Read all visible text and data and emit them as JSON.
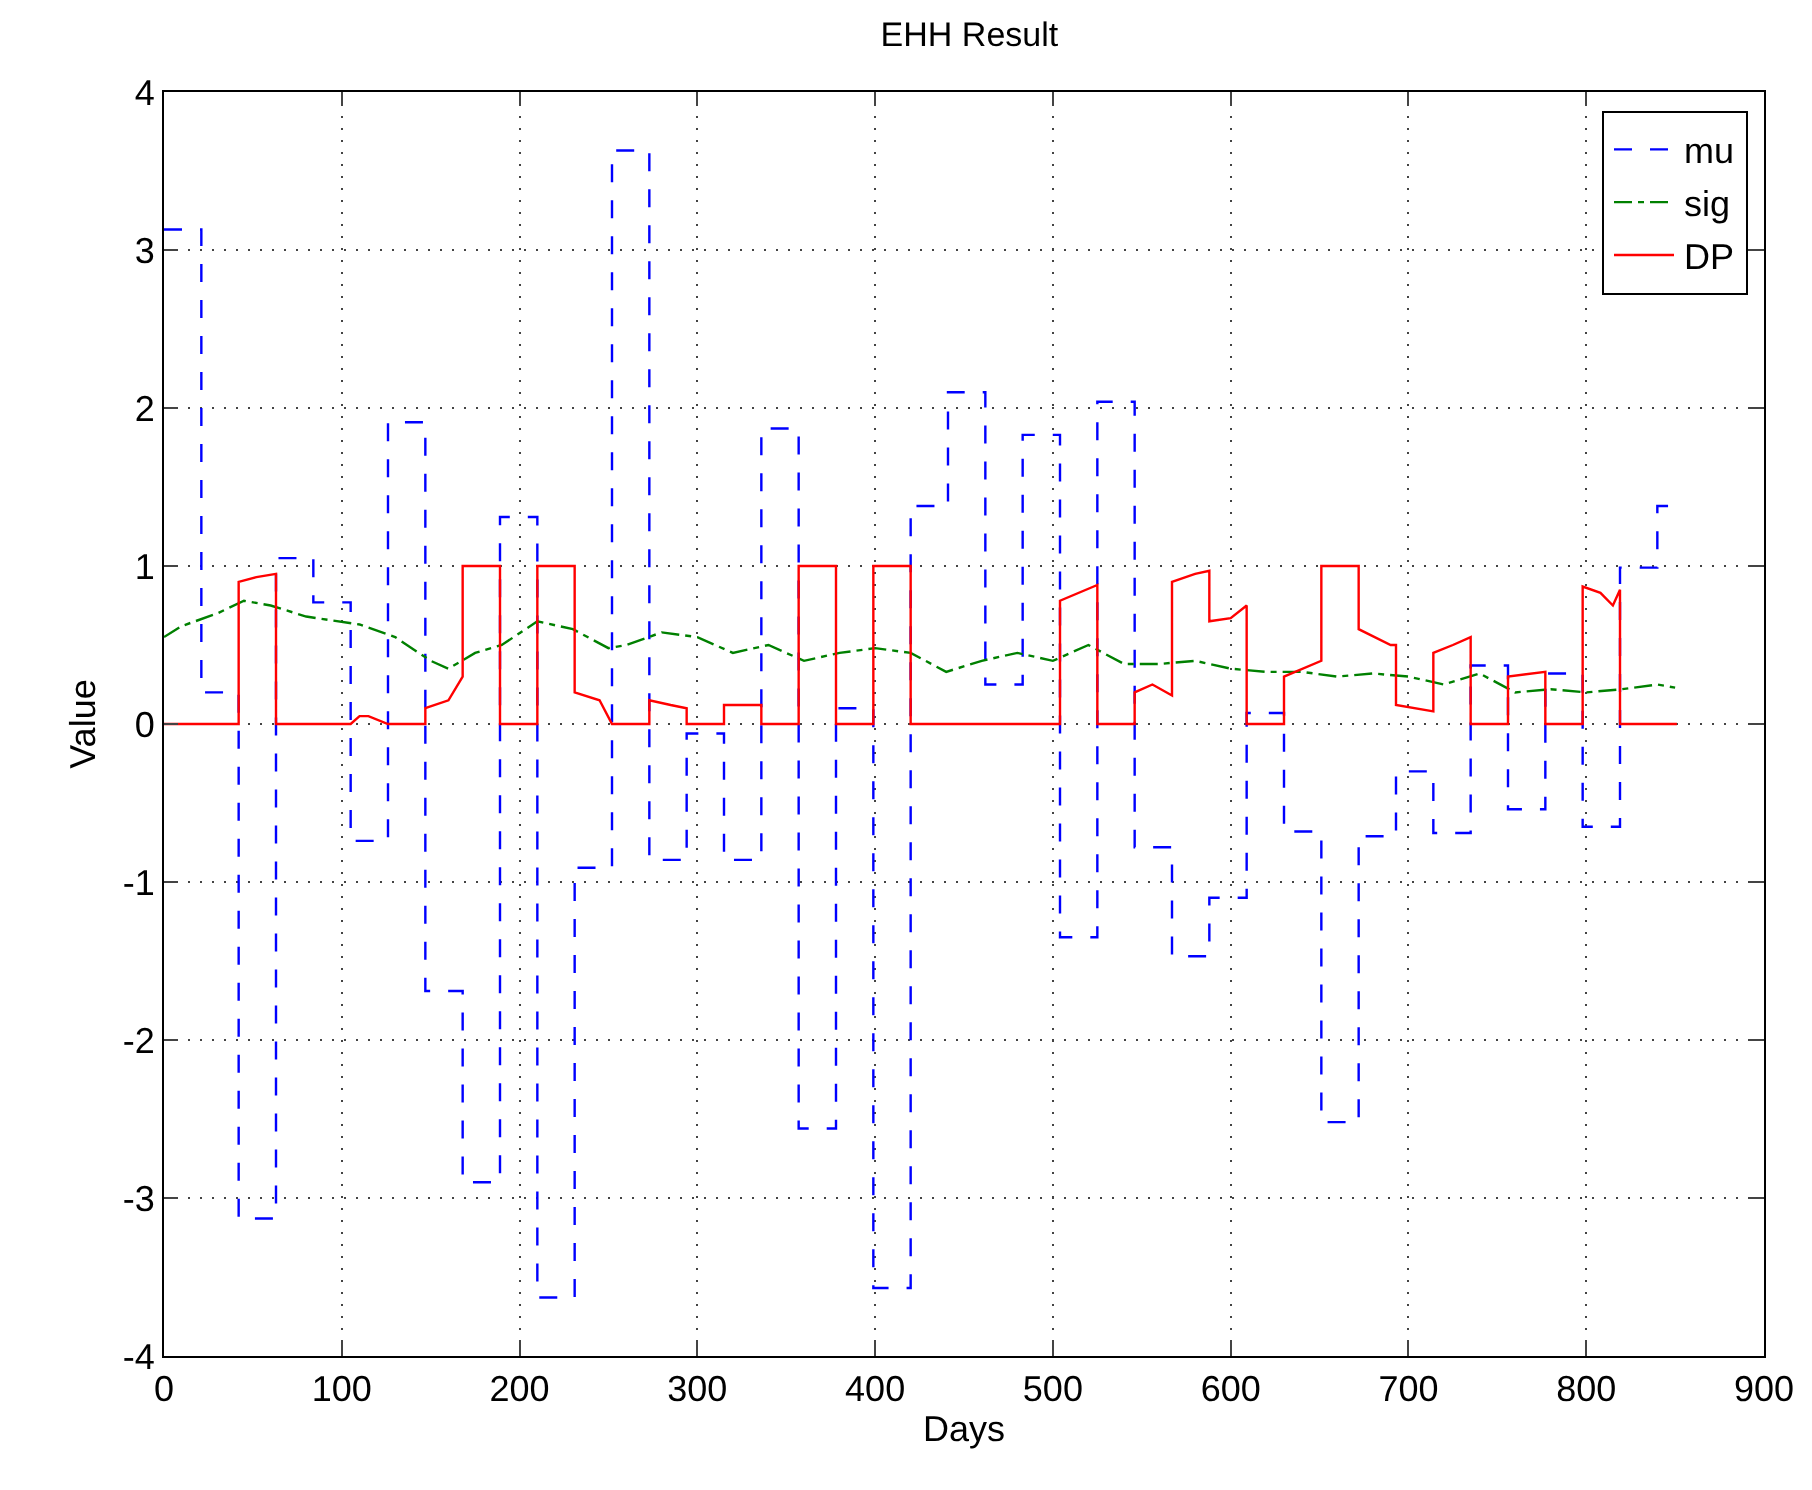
{
  "chart_data": {
    "type": "line",
    "title": "EHH Result",
    "xlabel": "Days",
    "ylabel": "Value",
    "xlim": [
      0,
      900
    ],
    "xticks": [
      0,
      100,
      200,
      300,
      400,
      500,
      600,
      700,
      800,
      900
    ],
    "ylim": [
      -4,
      4
    ],
    "yticks": [
      -4,
      -3,
      -2,
      -1,
      0,
      1,
      2,
      3,
      4
    ],
    "grid": true,
    "legend": "top right",
    "series": [
      {
        "name": "mu",
        "type": "step",
        "color": "#0000ff",
        "line_style": "dashed",
        "x": [
          0,
          21,
          42,
          63,
          84,
          105,
          126,
          147,
          168,
          189,
          210,
          231,
          252,
          273,
          294,
          315,
          336,
          357,
          378,
          399,
          420,
          441,
          462,
          483,
          504,
          525,
          546,
          567,
          588,
          609,
          630,
          651,
          672,
          693,
          714,
          735,
          756,
          777,
          798,
          819,
          840,
          850
        ],
        "values": [
          3.13,
          0.2,
          -3.13,
          1.05,
          0.77,
          -0.74,
          1.91,
          -1.69,
          -2.9,
          1.31,
          -3.63,
          -0.91,
          3.63,
          -0.86,
          -0.06,
          -0.86,
          1.87,
          -2.56,
          0.1,
          -3.57,
          1.38,
          2.1,
          0.25,
          1.83,
          -1.35,
          2.04,
          -0.78,
          -1.47,
          -1.1,
          0.07,
          -0.68,
          -2.52,
          -0.71,
          -0.3,
          -0.69,
          0.37,
          -0.54,
          0.32,
          -0.65,
          0.99,
          1.38,
          1.38
        ]
      },
      {
        "name": "sig",
        "type": "line",
        "color": "#008000",
        "line_style": "dashdot",
        "x": [
          0,
          10,
          30,
          45,
          60,
          80,
          110,
          130,
          150,
          160,
          175,
          190,
          210,
          230,
          250,
          260,
          280,
          300,
          320,
          340,
          360,
          380,
          400,
          420,
          440,
          460,
          480,
          500,
          520,
          540,
          560,
          580,
          600,
          620,
          640,
          660,
          680,
          700,
          720,
          740,
          760,
          780,
          800,
          820,
          840,
          850
        ],
        "values": [
          0.55,
          0.62,
          0.7,
          0.78,
          0.75,
          0.68,
          0.63,
          0.55,
          0.4,
          0.35,
          0.45,
          0.5,
          0.65,
          0.6,
          0.48,
          0.5,
          0.58,
          0.55,
          0.45,
          0.5,
          0.4,
          0.45,
          0.48,
          0.45,
          0.33,
          0.4,
          0.45,
          0.4,
          0.5,
          0.38,
          0.38,
          0.4,
          0.35,
          0.33,
          0.33,
          0.3,
          0.32,
          0.3,
          0.25,
          0.32,
          0.2,
          0.22,
          0.2,
          0.22,
          0.25,
          0.23
        ]
      },
      {
        "name": "DP",
        "type": "line",
        "color": "#ff0000",
        "line_style": "solid",
        "x": [
          0,
          42,
          42,
          52,
          63,
          63,
          105,
          110,
          115,
          126,
          147,
          147,
          160,
          168,
          168,
          189,
          189,
          210,
          210,
          231,
          231,
          245,
          252,
          252,
          273,
          273,
          285,
          294,
          294,
          315,
          315,
          336,
          336,
          357,
          357,
          378,
          378,
          399,
          399,
          420,
          420,
          504,
          504,
          525,
          525,
          546,
          546,
          556,
          567,
          567,
          580,
          588,
          588,
          600,
          609,
          609,
          630,
          630,
          651,
          651,
          672,
          672,
          690,
          693,
          693,
          714,
          714,
          725,
          735,
          735,
          756,
          756,
          777,
          777,
          798,
          798,
          808,
          815,
          819,
          819,
          851
        ],
        "values": [
          0,
          0,
          0.9,
          0.93,
          0.95,
          0,
          0,
          0.05,
          0.05,
          0,
          0,
          0.1,
          0.15,
          0.3,
          1,
          1,
          0,
          0,
          1,
          1,
          0.2,
          0.15,
          0,
          0,
          0,
          0.15,
          0.12,
          0.1,
          0,
          0,
          0.12,
          0.12,
          0,
          0,
          1,
          1,
          0,
          0,
          1,
          1,
          0,
          0,
          0.78,
          0.88,
          0,
          0,
          0.2,
          0.25,
          0.18,
          0.9,
          0.95,
          0.97,
          0.65,
          0.67,
          0.75,
          0,
          0,
          0.3,
          0.4,
          1,
          1,
          0.6,
          0.5,
          0.5,
          0.12,
          0.08,
          0.45,
          0.5,
          0.55,
          0,
          0,
          0.3,
          0.33,
          0,
          0,
          0.87,
          0.83,
          0.75,
          0.85,
          0,
          0
        ]
      }
    ]
  }
}
